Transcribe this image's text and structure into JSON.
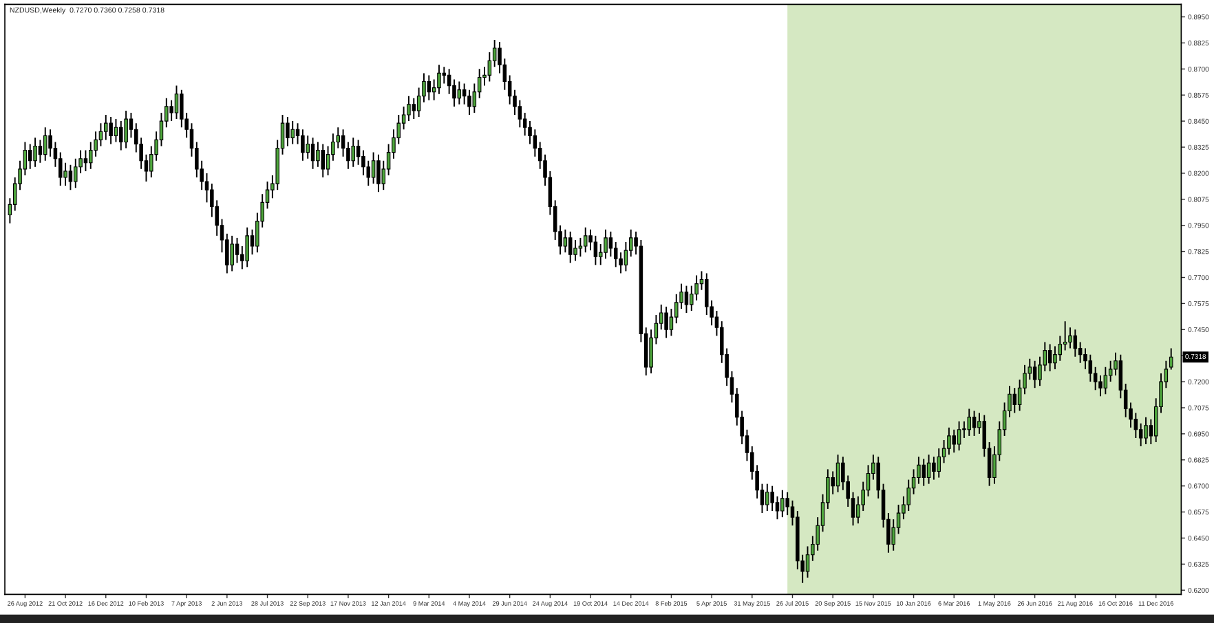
{
  "chart_data": {
    "type": "candlestick",
    "title": "NZDUSD,Weekly  0.7270 0.7360 0.7258 0.7318",
    "x": [
      "2012-08-05",
      "2012-08-12",
      "2012-08-19",
      "2012-08-26",
      "2012-09-02",
      "2012-09-09",
      "2012-09-16",
      "2012-09-23",
      "2012-09-30",
      "2012-10-07",
      "2012-10-14",
      "2012-10-21",
      "2012-10-28",
      "2012-11-04",
      "2012-11-11",
      "2012-11-18",
      "2012-11-25",
      "2012-12-02",
      "2012-12-09",
      "2012-12-16",
      "2012-12-23",
      "2012-12-30",
      "2013-01-06",
      "2013-01-13",
      "2013-01-20",
      "2013-01-27",
      "2013-02-03",
      "2013-02-10",
      "2013-02-17",
      "2013-02-24",
      "2013-03-03",
      "2013-03-10",
      "2013-03-17",
      "2013-03-24",
      "2013-03-31",
      "2013-04-07",
      "2013-04-14",
      "2013-04-21",
      "2013-04-28",
      "2013-05-05",
      "2013-05-12",
      "2013-05-19",
      "2013-05-26",
      "2013-06-02",
      "2013-06-09",
      "2013-06-16",
      "2013-06-23",
      "2013-06-30",
      "2013-07-07",
      "2013-07-14",
      "2013-07-21",
      "2013-07-28",
      "2013-08-04",
      "2013-08-11",
      "2013-08-18",
      "2013-08-25",
      "2013-09-01",
      "2013-09-08",
      "2013-09-15",
      "2013-09-22",
      "2013-09-29",
      "2013-10-06",
      "2013-10-13",
      "2013-10-20",
      "2013-10-27",
      "2013-11-03",
      "2013-11-10",
      "2013-11-17",
      "2013-11-24",
      "2013-12-01",
      "2013-12-08",
      "2013-12-15",
      "2013-12-22",
      "2013-12-29",
      "2014-01-05",
      "2014-01-12",
      "2014-01-19",
      "2014-01-26",
      "2014-02-02",
      "2014-02-09",
      "2014-02-16",
      "2014-02-23",
      "2014-03-02",
      "2014-03-09",
      "2014-03-16",
      "2014-03-23",
      "2014-03-30",
      "2014-04-06",
      "2014-04-13",
      "2014-04-20",
      "2014-04-27",
      "2014-05-04",
      "2014-05-11",
      "2014-05-18",
      "2014-05-25",
      "2014-06-01",
      "2014-06-08",
      "2014-06-15",
      "2014-06-22",
      "2014-06-29",
      "2014-07-06",
      "2014-07-13",
      "2014-07-20",
      "2014-07-27",
      "2014-08-03",
      "2014-08-10",
      "2014-08-17",
      "2014-08-24",
      "2014-08-31",
      "2014-09-07",
      "2014-09-14",
      "2014-09-21",
      "2014-09-28",
      "2014-10-05",
      "2014-10-12",
      "2014-10-19",
      "2014-10-26",
      "2014-11-02",
      "2014-11-09",
      "2014-11-16",
      "2014-11-23",
      "2014-11-30",
      "2014-12-07",
      "2014-12-14",
      "2014-12-21",
      "2014-12-28",
      "2015-01-04",
      "2015-01-11",
      "2015-01-18",
      "2015-01-25",
      "2015-02-01",
      "2015-02-08",
      "2015-02-15",
      "2015-02-22",
      "2015-03-01",
      "2015-03-08",
      "2015-03-15",
      "2015-03-22",
      "2015-03-29",
      "2015-04-05",
      "2015-04-12",
      "2015-04-19",
      "2015-04-26",
      "2015-05-03",
      "2015-05-10",
      "2015-05-17",
      "2015-05-24",
      "2015-05-31",
      "2015-06-07",
      "2015-06-14",
      "2015-06-21",
      "2015-06-28",
      "2015-07-05",
      "2015-07-12",
      "2015-07-19",
      "2015-07-26",
      "2015-08-02",
      "2015-08-09",
      "2015-08-16",
      "2015-08-23",
      "2015-08-30",
      "2015-09-06",
      "2015-09-13",
      "2015-09-20",
      "2015-09-27",
      "2015-10-04",
      "2015-10-11",
      "2015-10-18",
      "2015-10-25",
      "2015-11-01",
      "2015-11-08",
      "2015-11-15",
      "2015-11-22",
      "2015-11-29",
      "2015-12-06",
      "2015-12-13",
      "2015-12-20",
      "2015-12-27",
      "2016-01-03",
      "2016-01-10",
      "2016-01-17",
      "2016-01-24",
      "2016-01-31",
      "2016-02-07",
      "2016-02-14",
      "2016-02-21",
      "2016-02-28",
      "2016-03-06",
      "2016-03-13",
      "2016-03-20",
      "2016-03-27",
      "2016-04-03",
      "2016-04-10",
      "2016-04-17",
      "2016-04-24",
      "2016-05-01",
      "2016-05-08",
      "2016-05-15",
      "2016-05-22",
      "2016-05-29",
      "2016-06-05",
      "2016-06-12",
      "2016-06-19",
      "2016-06-26",
      "2016-07-03",
      "2016-07-10",
      "2016-07-17",
      "2016-07-24",
      "2016-07-31",
      "2016-08-07",
      "2016-08-14",
      "2016-08-21",
      "2016-08-28",
      "2016-09-04",
      "2016-09-11",
      "2016-09-18",
      "2016-09-25",
      "2016-10-02",
      "2016-10-09",
      "2016-10-16",
      "2016-10-23",
      "2016-10-30",
      "2016-11-06",
      "2016-11-13",
      "2016-11-20",
      "2016-11-27",
      "2016-12-04",
      "2016-12-11",
      "2016-12-18",
      "2016-12-25",
      "2017-01-01"
    ],
    "ohlc": [
      [
        0.8,
        0.808,
        0.796,
        0.805
      ],
      [
        0.805,
        0.818,
        0.802,
        0.815
      ],
      [
        0.815,
        0.826,
        0.812,
        0.822
      ],
      [
        0.822,
        0.835,
        0.819,
        0.831
      ],
      [
        0.831,
        0.834,
        0.822,
        0.826
      ],
      [
        0.826,
        0.837,
        0.823,
        0.833
      ],
      [
        0.833,
        0.836,
        0.825,
        0.829
      ],
      [
        0.829,
        0.842,
        0.826,
        0.838
      ],
      [
        0.838,
        0.841,
        0.828,
        0.832
      ],
      [
        0.832,
        0.835,
        0.823,
        0.827
      ],
      [
        0.827,
        0.83,
        0.814,
        0.818
      ],
      [
        0.818,
        0.825,
        0.814,
        0.821
      ],
      [
        0.821,
        0.824,
        0.812,
        0.816
      ],
      [
        0.816,
        0.827,
        0.813,
        0.823
      ],
      [
        0.823,
        0.831,
        0.82,
        0.827
      ],
      [
        0.827,
        0.831,
        0.821,
        0.825
      ],
      [
        0.825,
        0.835,
        0.822,
        0.831
      ],
      [
        0.831,
        0.84,
        0.828,
        0.836
      ],
      [
        0.836,
        0.844,
        0.833,
        0.84
      ],
      [
        0.84,
        0.848,
        0.836,
        0.844
      ],
      [
        0.844,
        0.847,
        0.834,
        0.838
      ],
      [
        0.838,
        0.846,
        0.835,
        0.842
      ],
      [
        0.842,
        0.845,
        0.831,
        0.835
      ],
      [
        0.835,
        0.85,
        0.832,
        0.846
      ],
      [
        0.846,
        0.849,
        0.837,
        0.841
      ],
      [
        0.841,
        0.844,
        0.83,
        0.834
      ],
      [
        0.834,
        0.837,
        0.822,
        0.826
      ],
      [
        0.826,
        0.829,
        0.816,
        0.821
      ],
      [
        0.821,
        0.833,
        0.818,
        0.829
      ],
      [
        0.829,
        0.84,
        0.826,
        0.836
      ],
      [
        0.836,
        0.849,
        0.833,
        0.845
      ],
      [
        0.845,
        0.856,
        0.842,
        0.852
      ],
      [
        0.852,
        0.855,
        0.845,
        0.849
      ],
      [
        0.849,
        0.862,
        0.846,
        0.858
      ],
      [
        0.858,
        0.86,
        0.842,
        0.846
      ],
      [
        0.846,
        0.849,
        0.837,
        0.841
      ],
      [
        0.841,
        0.844,
        0.828,
        0.832
      ],
      [
        0.832,
        0.835,
        0.818,
        0.822
      ],
      [
        0.822,
        0.826,
        0.812,
        0.816
      ],
      [
        0.816,
        0.82,
        0.806,
        0.812
      ],
      [
        0.812,
        0.815,
        0.799,
        0.804
      ],
      [
        0.804,
        0.807,
        0.79,
        0.795
      ],
      [
        0.795,
        0.798,
        0.782,
        0.788
      ],
      [
        0.788,
        0.791,
        0.772,
        0.776
      ],
      [
        0.776,
        0.79,
        0.773,
        0.786
      ],
      [
        0.786,
        0.789,
        0.777,
        0.781
      ],
      [
        0.781,
        0.785,
        0.774,
        0.778
      ],
      [
        0.778,
        0.794,
        0.775,
        0.79
      ],
      [
        0.79,
        0.793,
        0.781,
        0.785
      ],
      [
        0.785,
        0.801,
        0.782,
        0.797
      ],
      [
        0.797,
        0.81,
        0.794,
        0.806
      ],
      [
        0.806,
        0.816,
        0.803,
        0.812
      ],
      [
        0.812,
        0.819,
        0.808,
        0.815
      ],
      [
        0.815,
        0.836,
        0.812,
        0.832
      ],
      [
        0.832,
        0.848,
        0.829,
        0.844
      ],
      [
        0.844,
        0.847,
        0.833,
        0.837
      ],
      [
        0.837,
        0.845,
        0.834,
        0.841
      ],
      [
        0.841,
        0.844,
        0.834,
        0.838
      ],
      [
        0.838,
        0.841,
        0.826,
        0.83
      ],
      [
        0.83,
        0.838,
        0.827,
        0.834
      ],
      [
        0.834,
        0.837,
        0.822,
        0.826
      ],
      [
        0.826,
        0.835,
        0.823,
        0.831
      ],
      [
        0.831,
        0.834,
        0.818,
        0.822
      ],
      [
        0.822,
        0.833,
        0.819,
        0.829
      ],
      [
        0.829,
        0.839,
        0.826,
        0.835
      ],
      [
        0.835,
        0.842,
        0.832,
        0.838
      ],
      [
        0.838,
        0.841,
        0.828,
        0.832
      ],
      [
        0.832,
        0.835,
        0.822,
        0.826
      ],
      [
        0.826,
        0.837,
        0.823,
        0.833
      ],
      [
        0.833,
        0.836,
        0.824,
        0.828
      ],
      [
        0.828,
        0.831,
        0.819,
        0.823
      ],
      [
        0.823,
        0.826,
        0.814,
        0.818
      ],
      [
        0.818,
        0.83,
        0.815,
        0.826
      ],
      [
        0.826,
        0.829,
        0.811,
        0.815
      ],
      [
        0.815,
        0.826,
        0.812,
        0.822
      ],
      [
        0.822,
        0.834,
        0.819,
        0.83
      ],
      [
        0.83,
        0.841,
        0.827,
        0.837
      ],
      [
        0.837,
        0.848,
        0.834,
        0.844
      ],
      [
        0.844,
        0.852,
        0.841,
        0.848
      ],
      [
        0.848,
        0.857,
        0.845,
        0.853
      ],
      [
        0.853,
        0.856,
        0.846,
        0.85
      ],
      [
        0.85,
        0.861,
        0.847,
        0.857
      ],
      [
        0.857,
        0.868,
        0.854,
        0.864
      ],
      [
        0.864,
        0.867,
        0.855,
        0.859
      ],
      [
        0.859,
        0.865,
        0.855,
        0.861
      ],
      [
        0.861,
        0.872,
        0.858,
        0.868
      ],
      [
        0.868,
        0.871,
        0.863,
        0.867
      ],
      [
        0.867,
        0.87,
        0.858,
        0.862
      ],
      [
        0.862,
        0.865,
        0.852,
        0.856
      ],
      [
        0.856,
        0.864,
        0.853,
        0.86
      ],
      [
        0.86,
        0.863,
        0.853,
        0.857
      ],
      [
        0.857,
        0.86,
        0.848,
        0.852
      ],
      [
        0.852,
        0.863,
        0.849,
        0.859
      ],
      [
        0.859,
        0.87,
        0.856,
        0.866
      ],
      [
        0.866,
        0.871,
        0.862,
        0.867
      ],
      [
        0.867,
        0.878,
        0.864,
        0.874
      ],
      [
        0.874,
        0.884,
        0.871,
        0.88
      ],
      [
        0.88,
        0.883,
        0.868,
        0.872
      ],
      [
        0.872,
        0.875,
        0.86,
        0.864
      ],
      [
        0.864,
        0.867,
        0.853,
        0.857
      ],
      [
        0.857,
        0.86,
        0.848,
        0.852
      ],
      [
        0.852,
        0.855,
        0.842,
        0.846
      ],
      [
        0.846,
        0.849,
        0.838,
        0.842
      ],
      [
        0.842,
        0.845,
        0.834,
        0.838
      ],
      [
        0.838,
        0.841,
        0.828,
        0.832
      ],
      [
        0.832,
        0.835,
        0.822,
        0.826
      ],
      [
        0.826,
        0.829,
        0.814,
        0.818
      ],
      [
        0.818,
        0.821,
        0.8,
        0.804
      ],
      [
        0.804,
        0.807,
        0.788,
        0.792
      ],
      [
        0.792,
        0.795,
        0.781,
        0.785
      ],
      [
        0.785,
        0.793,
        0.782,
        0.789
      ],
      [
        0.789,
        0.792,
        0.777,
        0.781
      ],
      [
        0.781,
        0.788,
        0.778,
        0.784
      ],
      [
        0.784,
        0.789,
        0.78,
        0.785
      ],
      [
        0.785,
        0.794,
        0.782,
        0.79
      ],
      [
        0.79,
        0.793,
        0.783,
        0.787
      ],
      [
        0.787,
        0.79,
        0.776,
        0.78
      ],
      [
        0.78,
        0.786,
        0.776,
        0.782
      ],
      [
        0.782,
        0.793,
        0.779,
        0.789
      ],
      [
        0.789,
        0.792,
        0.78,
        0.784
      ],
      [
        0.784,
        0.787,
        0.775,
        0.779
      ],
      [
        0.779,
        0.782,
        0.772,
        0.776
      ],
      [
        0.776,
        0.787,
        0.773,
        0.783
      ],
      [
        0.783,
        0.793,
        0.78,
        0.789
      ],
      [
        0.789,
        0.792,
        0.781,
        0.785
      ],
      [
        0.785,
        0.788,
        0.739,
        0.743
      ],
      [
        0.743,
        0.746,
        0.723,
        0.727
      ],
      [
        0.727,
        0.745,
        0.724,
        0.741
      ],
      [
        0.741,
        0.752,
        0.738,
        0.748
      ],
      [
        0.748,
        0.757,
        0.745,
        0.753
      ],
      [
        0.753,
        0.756,
        0.741,
        0.745
      ],
      [
        0.745,
        0.755,
        0.742,
        0.751
      ],
      [
        0.751,
        0.762,
        0.748,
        0.758
      ],
      [
        0.758,
        0.767,
        0.755,
        0.763
      ],
      [
        0.763,
        0.766,
        0.753,
        0.757
      ],
      [
        0.757,
        0.766,
        0.754,
        0.762
      ],
      [
        0.762,
        0.771,
        0.759,
        0.767
      ],
      [
        0.767,
        0.773,
        0.764,
        0.769
      ],
      [
        0.769,
        0.772,
        0.752,
        0.756
      ],
      [
        0.756,
        0.759,
        0.747,
        0.751
      ],
      [
        0.751,
        0.754,
        0.742,
        0.746
      ],
      [
        0.746,
        0.749,
        0.729,
        0.733
      ],
      [
        0.733,
        0.736,
        0.718,
        0.722
      ],
      [
        0.722,
        0.725,
        0.71,
        0.714
      ],
      [
        0.714,
        0.717,
        0.699,
        0.703
      ],
      [
        0.703,
        0.706,
        0.69,
        0.694
      ],
      [
        0.694,
        0.697,
        0.682,
        0.686
      ],
      [
        0.686,
        0.689,
        0.673,
        0.677
      ],
      [
        0.677,
        0.68,
        0.664,
        0.668
      ],
      [
        0.668,
        0.671,
        0.657,
        0.661
      ],
      [
        0.661,
        0.671,
        0.658,
        0.667
      ],
      [
        0.667,
        0.67,
        0.658,
        0.662
      ],
      [
        0.662,
        0.665,
        0.654,
        0.658
      ],
      [
        0.658,
        0.668,
        0.655,
        0.664
      ],
      [
        0.664,
        0.667,
        0.656,
        0.66
      ],
      [
        0.66,
        0.663,
        0.651,
        0.655
      ],
      [
        0.655,
        0.658,
        0.63,
        0.634
      ],
      [
        0.634,
        0.637,
        0.6235,
        0.629
      ],
      [
        0.629,
        0.641,
        0.626,
        0.637
      ],
      [
        0.637,
        0.646,
        0.634,
        0.642
      ],
      [
        0.642,
        0.655,
        0.639,
        0.651
      ],
      [
        0.651,
        0.666,
        0.648,
        0.662
      ],
      [
        0.662,
        0.678,
        0.659,
        0.674
      ],
      [
        0.674,
        0.677,
        0.666,
        0.67
      ],
      [
        0.67,
        0.685,
        0.667,
        0.681
      ],
      [
        0.681,
        0.684,
        0.668,
        0.672
      ],
      [
        0.672,
        0.675,
        0.66,
        0.664
      ],
      [
        0.664,
        0.667,
        0.651,
        0.655
      ],
      [
        0.655,
        0.665,
        0.652,
        0.661
      ],
      [
        0.661,
        0.672,
        0.658,
        0.668
      ],
      [
        0.668,
        0.68,
        0.665,
        0.676
      ],
      [
        0.676,
        0.685,
        0.673,
        0.681
      ],
      [
        0.681,
        0.684,
        0.664,
        0.668
      ],
      [
        0.668,
        0.671,
        0.65,
        0.654
      ],
      [
        0.654,
        0.657,
        0.638,
        0.642
      ],
      [
        0.642,
        0.654,
        0.639,
        0.65
      ],
      [
        0.65,
        0.661,
        0.647,
        0.657
      ],
      [
        0.657,
        0.665,
        0.654,
        0.661
      ],
      [
        0.661,
        0.673,
        0.658,
        0.669
      ],
      [
        0.669,
        0.678,
        0.666,
        0.674
      ],
      [
        0.674,
        0.684,
        0.671,
        0.68
      ],
      [
        0.68,
        0.683,
        0.67,
        0.674
      ],
      [
        0.674,
        0.685,
        0.671,
        0.681
      ],
      [
        0.681,
        0.684,
        0.673,
        0.677
      ],
      [
        0.677,
        0.688,
        0.674,
        0.684
      ],
      [
        0.684,
        0.692,
        0.681,
        0.688
      ],
      [
        0.688,
        0.698,
        0.685,
        0.694
      ],
      [
        0.694,
        0.697,
        0.686,
        0.69
      ],
      [
        0.69,
        0.701,
        0.687,
        0.697
      ],
      [
        0.697,
        0.701,
        0.693,
        0.697
      ],
      [
        0.697,
        0.707,
        0.694,
        0.703
      ],
      [
        0.703,
        0.706,
        0.694,
        0.698
      ],
      [
        0.698,
        0.705,
        0.695,
        0.701
      ],
      [
        0.701,
        0.704,
        0.684,
        0.688
      ],
      [
        0.688,
        0.691,
        0.67,
        0.674
      ],
      [
        0.674,
        0.689,
        0.671,
        0.685
      ],
      [
        0.685,
        0.701,
        0.682,
        0.697
      ],
      [
        0.697,
        0.71,
        0.694,
        0.706
      ],
      [
        0.706,
        0.718,
        0.703,
        0.714
      ],
      [
        0.714,
        0.717,
        0.705,
        0.709
      ],
      [
        0.709,
        0.721,
        0.706,
        0.717
      ],
      [
        0.717,
        0.728,
        0.714,
        0.724
      ],
      [
        0.724,
        0.731,
        0.721,
        0.727
      ],
      [
        0.727,
        0.73,
        0.717,
        0.721
      ],
      [
        0.721,
        0.732,
        0.718,
        0.728
      ],
      [
        0.728,
        0.739,
        0.725,
        0.735
      ],
      [
        0.735,
        0.738,
        0.725,
        0.729
      ],
      [
        0.729,
        0.737,
        0.726,
        0.733
      ],
      [
        0.733,
        0.742,
        0.73,
        0.738
      ],
      [
        0.738,
        0.749,
        0.735,
        0.739
      ],
      [
        0.739,
        0.746,
        0.736,
        0.742
      ],
      [
        0.742,
        0.745,
        0.732,
        0.736
      ],
      [
        0.736,
        0.739,
        0.729,
        0.733
      ],
      [
        0.733,
        0.736,
        0.726,
        0.73
      ],
      [
        0.73,
        0.733,
        0.72,
        0.724
      ],
      [
        0.724,
        0.727,
        0.716,
        0.72
      ],
      [
        0.72,
        0.723,
        0.713,
        0.717
      ],
      [
        0.717,
        0.727,
        0.714,
        0.723
      ],
      [
        0.723,
        0.73,
        0.72,
        0.726
      ],
      [
        0.726,
        0.734,
        0.723,
        0.73
      ],
      [
        0.73,
        0.733,
        0.712,
        0.716
      ],
      [
        0.716,
        0.719,
        0.703,
        0.707
      ],
      [
        0.707,
        0.71,
        0.698,
        0.702
      ],
      [
        0.702,
        0.705,
        0.693,
        0.697
      ],
      [
        0.697,
        0.7,
        0.689,
        0.693
      ],
      [
        0.693,
        0.703,
        0.69,
        0.699
      ],
      [
        0.699,
        0.702,
        0.69,
        0.694
      ],
      [
        0.694,
        0.712,
        0.691,
        0.708
      ],
      [
        0.708,
        0.724,
        0.705,
        0.72
      ],
      [
        0.72,
        0.73,
        0.717,
        0.726
      ],
      [
        0.727,
        0.736,
        0.7258,
        0.7318
      ]
    ],
    "xlim": [
      "2012-07-29",
      "2017-01-15"
    ],
    "xticks": [
      {
        "value": "2012-08-26",
        "label": "26 Aug 2012"
      },
      {
        "value": "2012-10-21",
        "label": "21 Oct 2012"
      },
      {
        "value": "2012-12-16",
        "label": "16 Dec 2012"
      },
      {
        "value": "2013-02-10",
        "label": "10 Feb 2013"
      },
      {
        "value": "2013-04-07",
        "label": "7 Apr 2013"
      },
      {
        "value": "2013-06-02",
        "label": "2 Jun 2013"
      },
      {
        "value": "2013-07-28",
        "label": "28 Jul 2013"
      },
      {
        "value": "2013-09-22",
        "label": "22 Sep 2013"
      },
      {
        "value": "2013-11-17",
        "label": "17 Nov 2013"
      },
      {
        "value": "2014-01-12",
        "label": "12 Jan 2014"
      },
      {
        "value": "2014-03-09",
        "label": "9 Mar 2014"
      },
      {
        "value": "2014-05-04",
        "label": "4 May 2014"
      },
      {
        "value": "2014-06-29",
        "label": "29 Jun 2014"
      },
      {
        "value": "2014-08-24",
        "label": "24 Aug 2014"
      },
      {
        "value": "2014-10-19",
        "label": "19 Oct 2014"
      },
      {
        "value": "2014-12-14",
        "label": "14 Dec 2014"
      },
      {
        "value": "2015-02-08",
        "label": "8 Feb 2015"
      },
      {
        "value": "2015-04-05",
        "label": "5 Apr 2015"
      },
      {
        "value": "2015-05-31",
        "label": "31 May 2015"
      },
      {
        "value": "2015-07-26",
        "label": "26 Jul 2015"
      },
      {
        "value": "2015-09-20",
        "label": "20 Sep 2015"
      },
      {
        "value": "2015-11-15",
        "label": "15 Nov 2015"
      },
      {
        "value": "2016-01-10",
        "label": "10 Jan 2016"
      },
      {
        "value": "2016-03-06",
        "label": "6 Mar 2016"
      },
      {
        "value": "2016-05-01",
        "label": "1 May 2016"
      },
      {
        "value": "2016-06-26",
        "label": "26 Jun 2016"
      },
      {
        "value": "2016-08-21",
        "label": "21 Aug 2016"
      },
      {
        "value": "2016-10-16",
        "label": "16 Oct 2016"
      },
      {
        "value": "2016-12-11",
        "label": "11 Dec 2016"
      }
    ],
    "ylim": [
      0.618,
      0.901
    ],
    "yticks": [
      {
        "value": 0.62,
        "label": "0.6200"
      },
      {
        "value": 0.6325,
        "label": "0.6325"
      },
      {
        "value": 0.645,
        "label": "0.6450"
      },
      {
        "value": 0.6575,
        "label": "0.6575"
      },
      {
        "value": 0.67,
        "label": "0.6700"
      },
      {
        "value": 0.6825,
        "label": "0.6825"
      },
      {
        "value": 0.695,
        "label": "0.6950"
      },
      {
        "value": 0.7075,
        "label": "0.7075"
      },
      {
        "value": 0.72,
        "label": "0.7200"
      },
      {
        "value": 0.7325,
        "label": null
      },
      {
        "value": 0.745,
        "label": "0.7450"
      },
      {
        "value": 0.7575,
        "label": "0.7575"
      },
      {
        "value": 0.77,
        "label": "0.7700"
      },
      {
        "value": 0.7825,
        "label": "0.7825"
      },
      {
        "value": 0.795,
        "label": "0.7950"
      },
      {
        "value": 0.8075,
        "label": "0.8075"
      },
      {
        "value": 0.82,
        "label": "0.8200"
      },
      {
        "value": 0.8325,
        "label": "0.8325"
      },
      {
        "value": 0.845,
        "label": "0.8450"
      },
      {
        "value": 0.8575,
        "label": "0.8575"
      },
      {
        "value": 0.87,
        "label": "0.8700"
      },
      {
        "value": 0.8825,
        "label": "0.8825"
      },
      {
        "value": 0.895,
        "label": "0.8950"
      }
    ],
    "bands": [
      {
        "axis": "x",
        "from": "2015-07-19",
        "to": "2017-01-15",
        "color": "#d5e8c2"
      }
    ],
    "annotations": [
      {
        "text": "0.7318",
        "y": 0.7318
      }
    ],
    "grid": false,
    "legend": false
  }
}
